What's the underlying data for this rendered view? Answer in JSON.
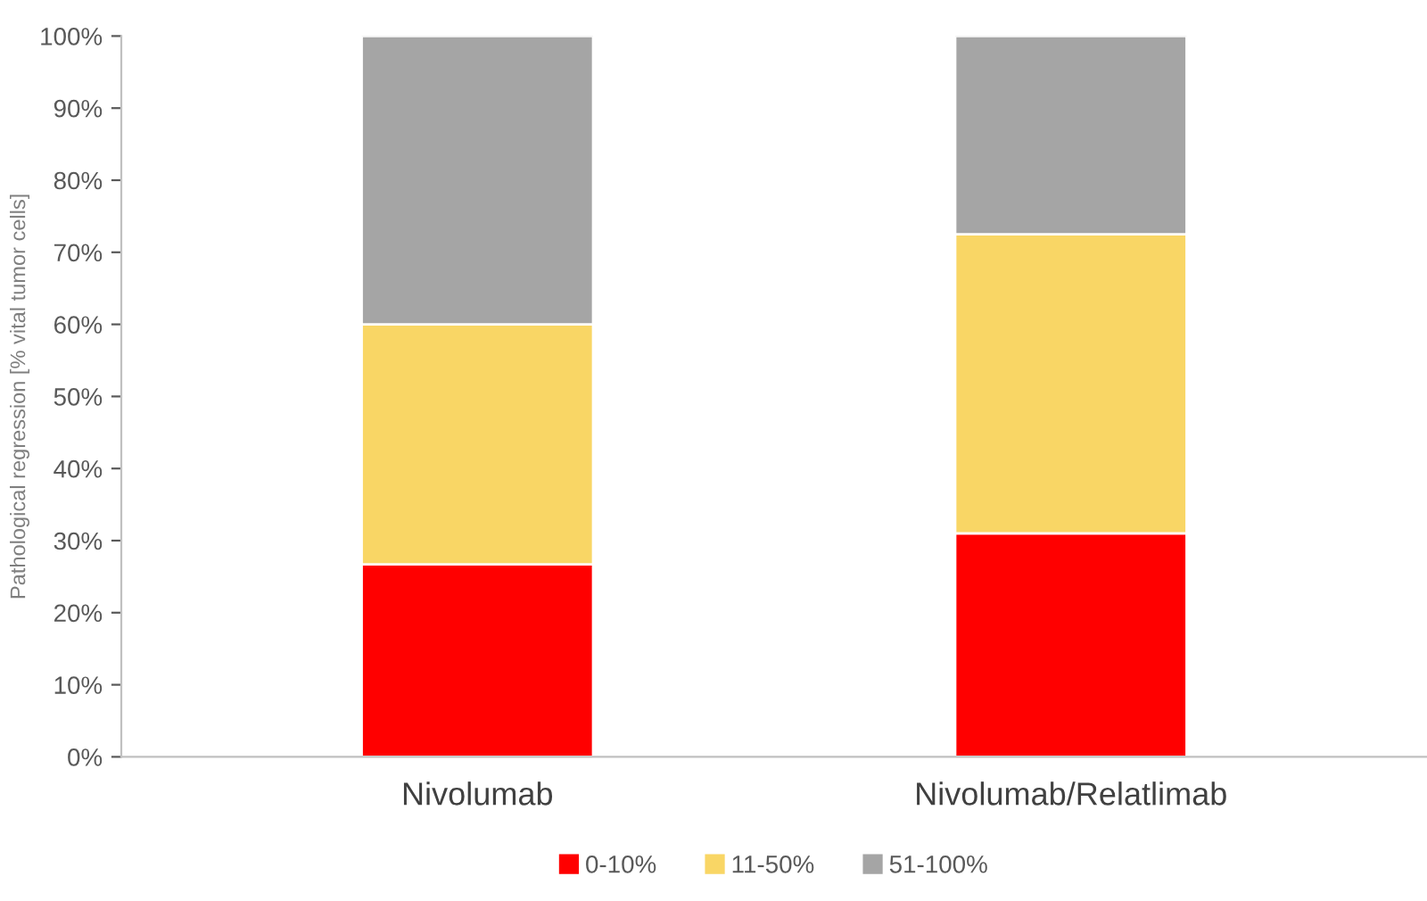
{
  "chart_data": {
    "type": "bar",
    "stacked": true,
    "ylabel": "Pathological regression [% vital tumor cells]",
    "categories": [
      "Nivolumab",
      "Nivolumab/Relatlimab"
    ],
    "series": [
      {
        "name": "0-10%",
        "color": "#ff0000",
        "values": [
          26.7,
          31.0
        ]
      },
      {
        "name": "11-50%",
        "color": "#f9d665",
        "values": [
          33.3,
          41.5
        ]
      },
      {
        "name": "51-100%",
        "color": "#a5a5a5",
        "values": [
          40.0,
          27.5
        ]
      }
    ],
    "ylim": [
      0,
      100
    ],
    "yticks": [
      {
        "value": 0,
        "label": "0%"
      },
      {
        "value": 10,
        "label": "10%"
      },
      {
        "value": 20,
        "label": "20%"
      },
      {
        "value": 30,
        "label": "30%"
      },
      {
        "value": 40,
        "label": "40%"
      },
      {
        "value": 50,
        "label": "50%"
      },
      {
        "value": 60,
        "label": "60%"
      },
      {
        "value": 70,
        "label": "70%"
      },
      {
        "value": 80,
        "label": "80%"
      },
      {
        "value": 90,
        "label": "90%"
      },
      {
        "value": 100,
        "label": "100%"
      }
    ],
    "grid": false,
    "legend": "bottom"
  }
}
